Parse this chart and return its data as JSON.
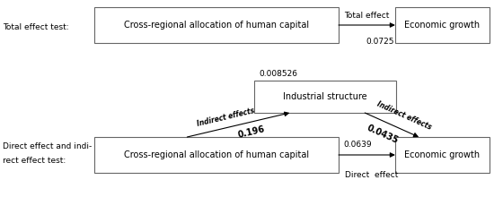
{
  "bg_color": "#ffffff",
  "text_color": "#000000",
  "box_edge_color": "#666666",
  "top_label": "Total effect test:",
  "top_box1": "Cross-regional allocation of human capital",
  "top_box2": "Economic growth",
  "top_arrow_label": "Total effect",
  "top_arrow_value": "0.0725",
  "mid_value": "0.008526",
  "bottom_label1": "Direct effect and indi-",
  "bottom_label2": "rect effect test:",
  "bottom_box1": "Cross-regional allocation of human capital",
  "bottom_box_mid": "Industrial structure",
  "bottom_box2": "Economic growth",
  "left_diag_label": "Indirect effects",
  "left_diag_value": "0.196",
  "right_diag_label": "Indirect effects",
  "right_diag_value": "0.0435",
  "direct_value": "0.0639",
  "direct_label": "Direct  effect"
}
